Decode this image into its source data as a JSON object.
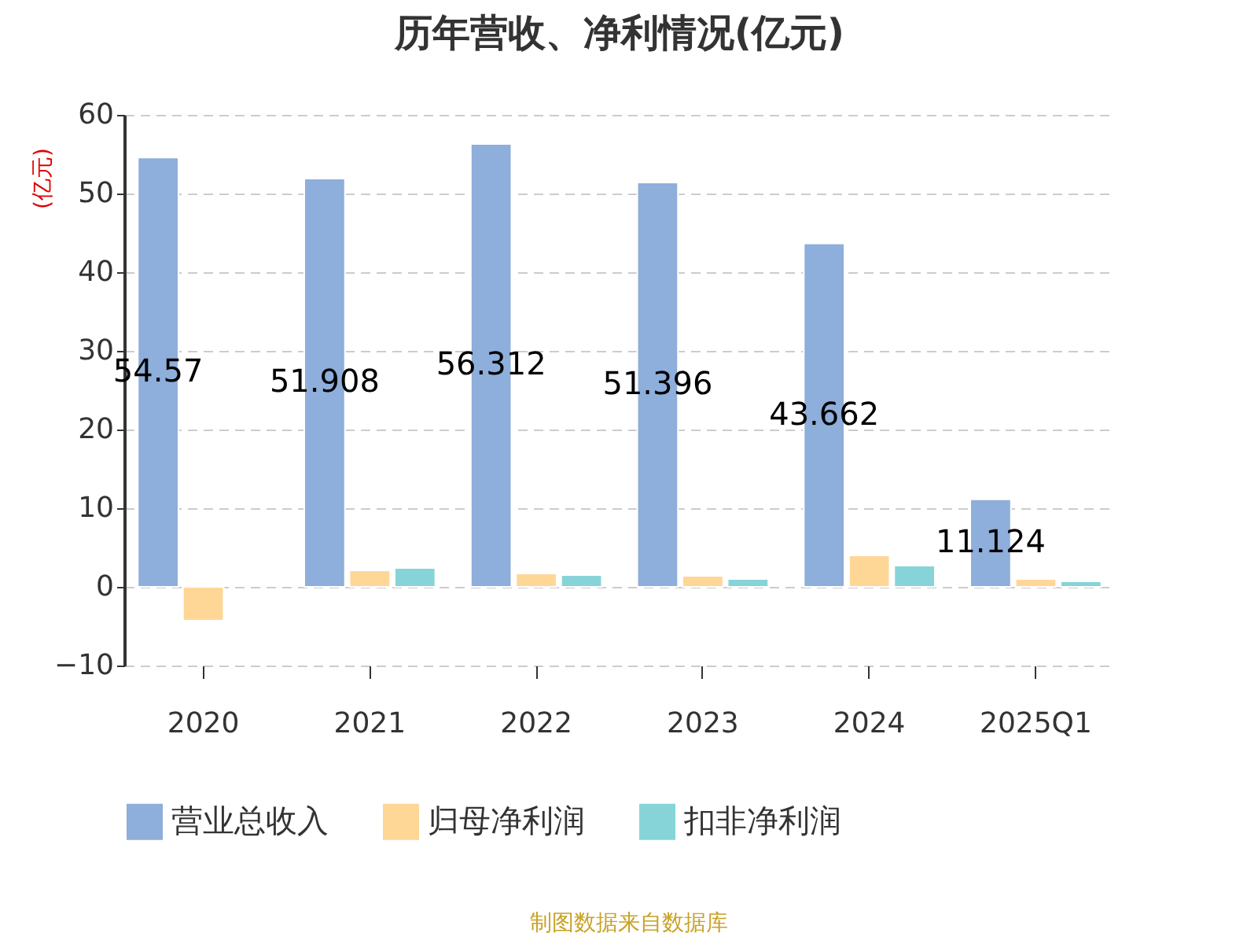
{
  "chart_data": {
    "type": "bar",
    "title": "历年营收、净利情况(亿元)",
    "ylabel": "(亿元)",
    "categories": [
      "2020",
      "2021",
      "2022",
      "2023",
      "2024",
      "2025Q1"
    ],
    "series": [
      {
        "name": "营业总收入",
        "color": "#8eaedb",
        "values": [
          54.57,
          51.908,
          56.312,
          51.396,
          43.662,
          11.124
        ],
        "value_labels": [
          "54.57",
          "51.908",
          "56.312",
          "51.396",
          "43.662",
          "11.124"
        ]
      },
      {
        "name": "归母净利润",
        "color": "#fed797",
        "values": [
          -4.3,
          2.1,
          1.7,
          1.4,
          4.0,
          1.0
        ]
      },
      {
        "name": "扣非净利润",
        "color": "#86d4d8",
        "values": [
          null,
          2.4,
          1.5,
          1.0,
          2.7,
          0.7
        ]
      }
    ],
    "ylim": [
      -10,
      60
    ],
    "yticks": [
      -10,
      0,
      10,
      20,
      30,
      40,
      50,
      60
    ],
    "grid": "y",
    "legend": "bottom",
    "annotations": [
      "制图数据来自数据库"
    ]
  }
}
